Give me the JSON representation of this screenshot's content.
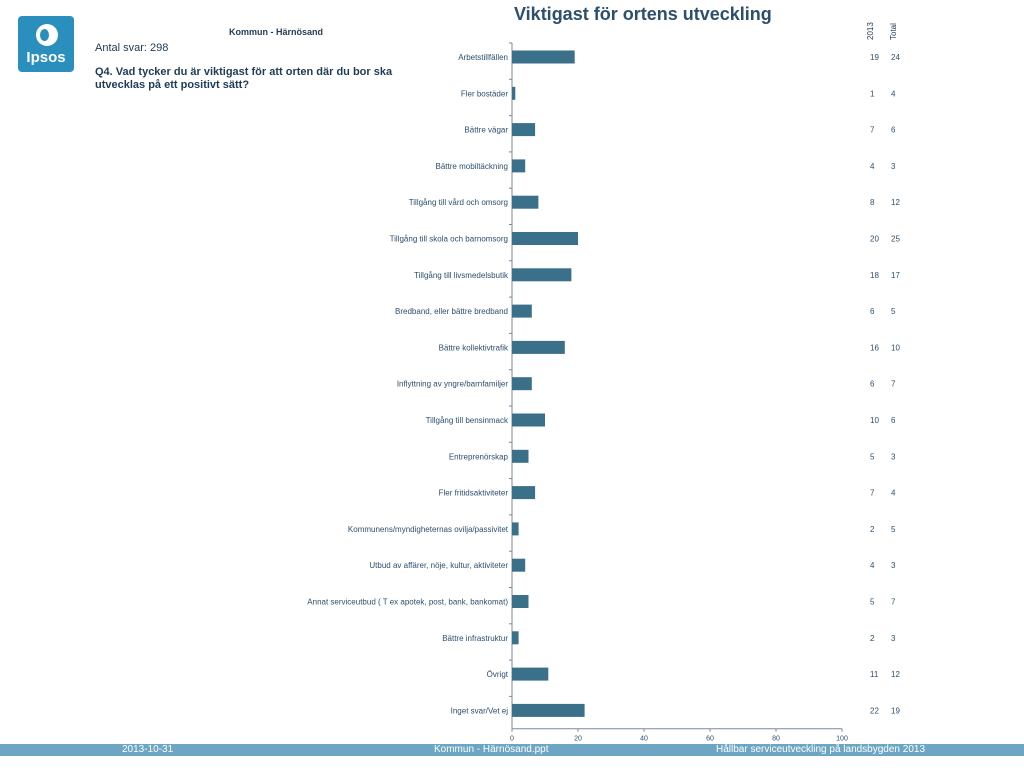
{
  "header": {
    "title": "Viktigast för ortens utveckling",
    "subtitle": "Kommun - Härnösand",
    "sample": "Antal svar: 298",
    "question": "Q4. Vad tycker du är viktigast för att orten där du bor ska utvecklas på ett positivt sätt?",
    "logo_text": "Ipsos",
    "col_2013": "2013",
    "col_total": "Total"
  },
  "chart_data": {
    "type": "bar",
    "orientation": "horizontal",
    "title": "Viktigast för ortens utveckling",
    "categories": [
      "Arbetstillfällen",
      "Fler bostäder",
      "Bättre vägar",
      "Bättre mobiltäckning",
      "Tillgång till vård och omsorg",
      "Tillgång till skola och barnomsorg",
      "Tillgång till livsmedelsbutik",
      "Bredband, eller bättre bredband",
      "Bättre kollektivtrafik",
      "Inflyttning av yngre/barnfamiljer",
      "Tillgång till bensinmack",
      "Entreprenörskap",
      "Fler fritidsaktiviteter",
      "Kommunens/myndigheternas ovilja/passivitet",
      "Utbud av affärer, nöje, kultur, aktiviteter",
      "Annat serviceutbud ( T ex apotek, post, bank, bankomat)",
      "Bättre infrastruktur",
      "Övrigt",
      "Inget svar/Vet ej"
    ],
    "series": [
      {
        "name": "2013",
        "values": [
          19,
          1,
          7,
          4,
          8,
          20,
          18,
          6,
          16,
          6,
          10,
          5,
          7,
          2,
          4,
          5,
          2,
          11,
          22
        ],
        "color": "#3a7089"
      },
      {
        "name": "Total",
        "values": [
          24,
          4,
          6,
          3,
          12,
          25,
          17,
          5,
          10,
          7,
          6,
          3,
          4,
          5,
          3,
          7,
          3,
          12,
          19
        ]
      }
    ],
    "xlim": [
      0,
      100
    ],
    "xticks": [
      "0",
      "20",
      "40",
      "60",
      "80",
      "100"
    ],
    "grid": false
  },
  "footer": {
    "date": "2013-10-31",
    "file": "Kommun - Härnösand.ppt",
    "project": "Hållbar serviceutveckling på landsbygden 2013",
    "color": "#6da6c4"
  }
}
